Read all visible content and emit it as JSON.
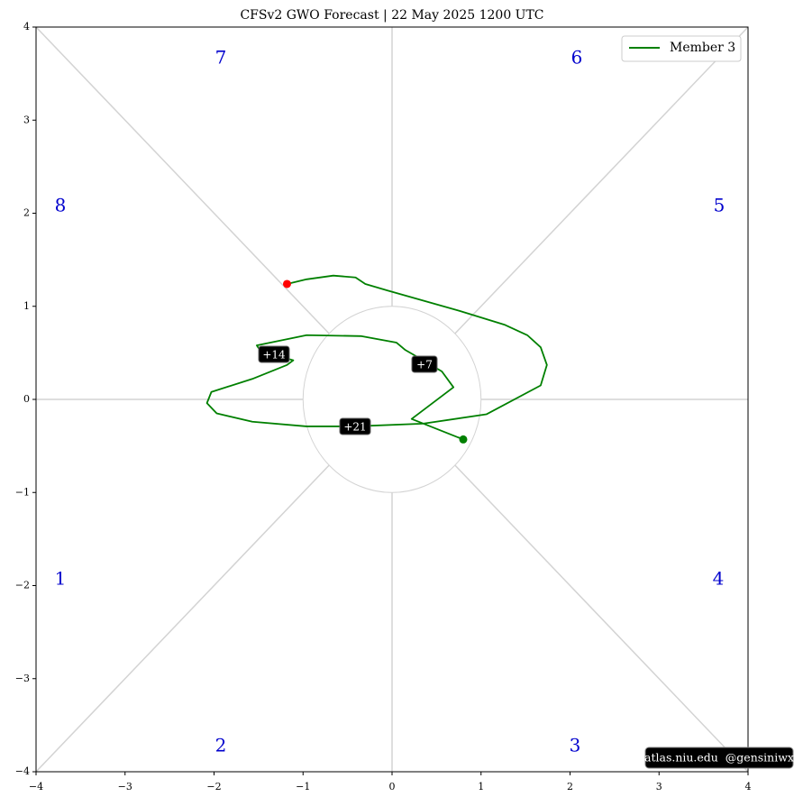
{
  "chart_data": {
    "type": "line",
    "title": "CFSv2 GWO Forecast   |   22  May  2025 1200 UTC",
    "series": [
      {
        "name": "Member 3",
        "color": "#008000",
        "x": [
          0.8,
          0.22,
          0.69,
          0.56,
          0.35,
          0.15,
          0.05,
          -0.35,
          -0.96,
          -1.52,
          -1.47,
          -1.33,
          -1.11,
          -1.18,
          -1.57,
          -2.03,
          -2.08,
          -1.97,
          -1.57,
          -0.96,
          -0.43,
          0.35,
          1.06,
          1.67,
          1.74,
          1.67,
          1.52,
          1.27,
          0.76,
          -0.05,
          -0.3,
          -0.41,
          -0.66,
          -0.96,
          -1.18
        ],
        "values": [
          -0.43,
          -0.21,
          0.13,
          0.3,
          0.42,
          0.53,
          0.61,
          0.68,
          0.69,
          0.58,
          0.51,
          0.48,
          0.42,
          0.37,
          0.22,
          0.08,
          -0.04,
          -0.15,
          -0.24,
          -0.29,
          -0.29,
          -0.26,
          -0.16,
          0.15,
          0.37,
          0.56,
          0.69,
          0.8,
          0.95,
          1.17,
          1.24,
          1.31,
          1.33,
          1.29,
          1.24
        ]
      }
    ],
    "start_color": "#008000",
    "end_color": "#ff0000",
    "xlim": [
      -4,
      4
    ],
    "ylim": [
      -4,
      4
    ],
    "xticks": [
      {
        "value": -4,
        "label": "−4"
      },
      {
        "value": -3,
        "label": "−3"
      },
      {
        "value": -2,
        "label": "−2"
      },
      {
        "value": -1,
        "label": "−1"
      },
      0,
      1,
      2,
      3,
      4
    ],
    "yticks": [
      {
        "value": -4,
        "label": "−4"
      },
      {
        "value": -3,
        "label": "−3"
      },
      {
        "value": -2,
        "label": "−2"
      },
      {
        "value": -1,
        "label": "−1"
      },
      0,
      1,
      2,
      3,
      4
    ],
    "phases": [
      "1",
      "2",
      "3",
      "4",
      "5",
      "6",
      "7",
      "8"
    ],
    "day_labels": [
      "+7",
      "+14",
      "+21"
    ],
    "legend": "upper right",
    "watermark": "atlas.niu.edu  @gensiniwx"
  }
}
